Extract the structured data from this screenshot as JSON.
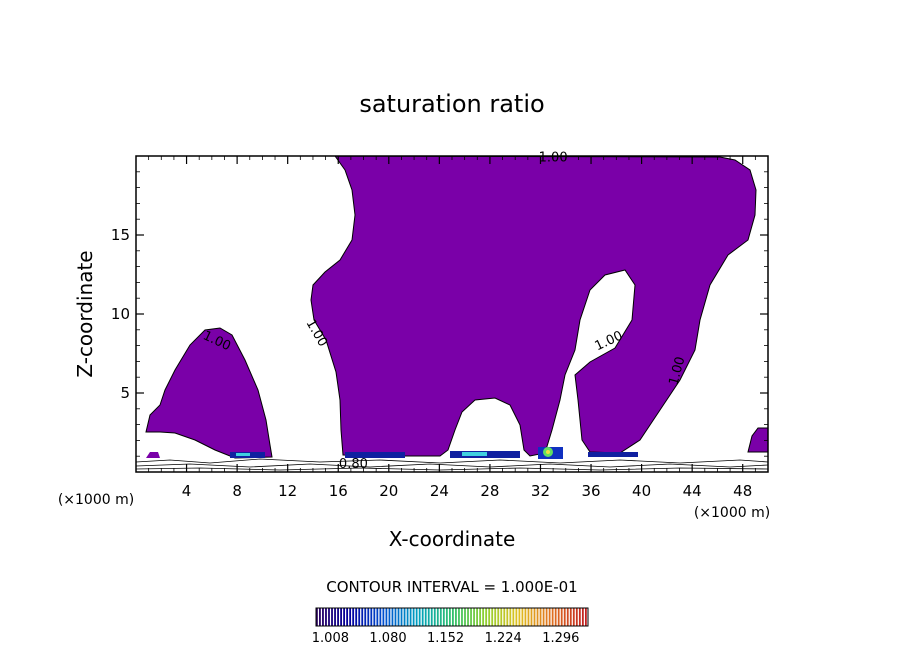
{
  "chart_data": {
    "type": "contour",
    "title": "saturation ratio",
    "xlabel": "X-coordinate",
    "ylabel": "Z-coordinate",
    "x_unit": "(×1000 m)",
    "x_unit_right": "(×1000 m)",
    "xlim": [
      0,
      50
    ],
    "ylim": [
      0,
      20
    ],
    "x_ticks": [
      4,
      8,
      12,
      16,
      20,
      24,
      28,
      32,
      36,
      40,
      44,
      48
    ],
    "y_ticks": [
      5,
      10,
      15
    ],
    "fill_color": "#7a00a8",
    "contour_labels": [
      {
        "text": "1.00",
        "x": 33,
        "z": 19.9
      },
      {
        "text": "1.00",
        "x": 6.4,
        "z": 8.3
      },
      {
        "text": "1.00",
        "x": 14.3,
        "z": 8.8
      },
      {
        "text": "1.00",
        "x": 37.4,
        "z": 8.3
      },
      {
        "text": "1.00",
        "x": 42.8,
        "z": 6.4
      },
      {
        "text": "0.80",
        "x": 17.2,
        "z": 0.5
      }
    ],
    "contour_interval": "CONTOUR INTERVAL = 1.000E-01",
    "colorbar": {
      "ticks": [
        "1.008",
        "1.080",
        "1.152",
        "1.224",
        "1.296"
      ],
      "range": [
        0.99,
        1.33
      ],
      "colors": [
        "#2a0060",
        "#0000a0",
        "#0050d0",
        "#00a0c0",
        "#30c070",
        "#90d030",
        "#e0c020",
        "#e07020",
        "#c02020"
      ]
    }
  }
}
